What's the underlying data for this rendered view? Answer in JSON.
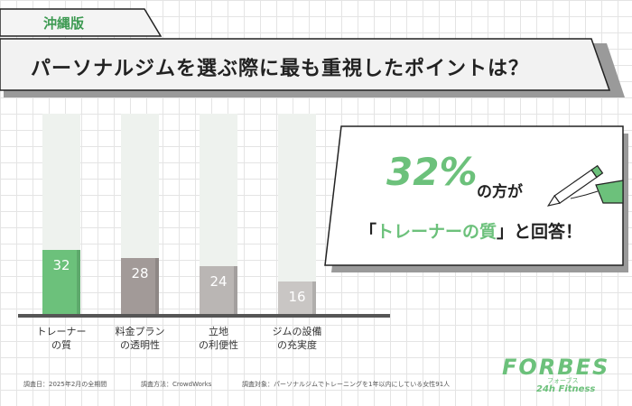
{
  "chart_data": {
    "type": "bar",
    "tag": "沖縄版",
    "title": "パーソナルジムを選ぶ際に最も重視したポイントは？",
    "categories": [
      "トレーナー\nの質",
      "料金プラン\nの透明性",
      "立地\nの利便性",
      "ジムの設備\nの充実度"
    ],
    "values": [
      32,
      28,
      24,
      16
    ],
    "colors": [
      "#6cc17b",
      "#a29a98",
      "#bab6b4",
      "#c9c6c4"
    ],
    "track_color": "#eef2ee",
    "ylim": [
      0,
      100
    ],
    "callout": {
      "highlight": "32%",
      "after_highlight": "の方が",
      "line2_open": "「",
      "line2_highlight": "トレーナーの質",
      "line2_close": "」と回答！"
    },
    "footnotes": [
      "調査日：2025年2月の全期間",
      "調査方法：CrowdWorks",
      "調査対象：パーソナルジムでトレーニングを1年以内にしている女性91人"
    ],
    "logo": {
      "name": "FORBES",
      "kana": "フォーブス",
      "sub": "24h Fitness"
    }
  }
}
